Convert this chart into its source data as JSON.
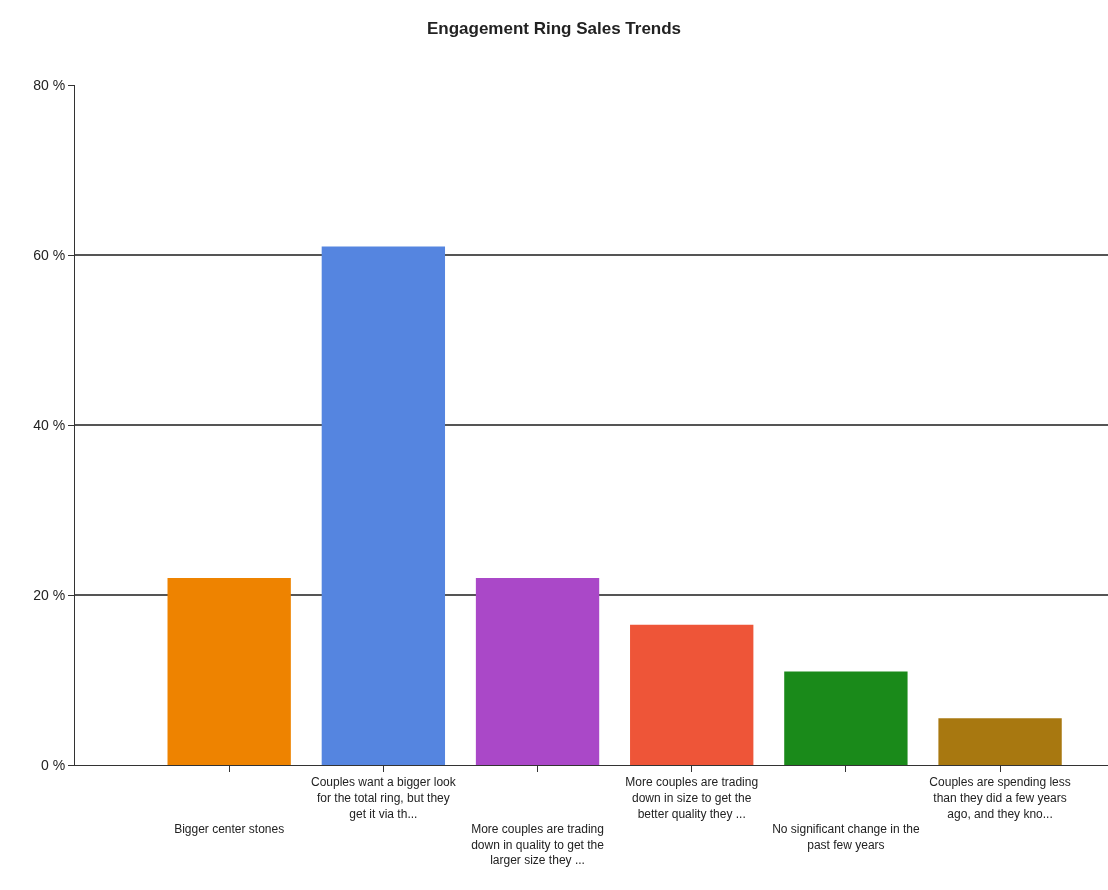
{
  "chart_data": {
    "type": "bar",
    "title": "Engagement Ring Sales Trends",
    "categories": [
      "Bigger center stones",
      "Couples want a bigger look for the total ring, but they get it via th...",
      "More couples are trading down in quality to get the larger size they ...",
      "More couples are trading down in size to get the better quality they ...",
      "No significant change in the past few years",
      "Couples are spending less than they did a few years ago, and they kno..."
    ],
    "values": [
      22,
      61,
      22,
      16.5,
      11,
      5.5
    ],
    "colors": [
      "#ee8300",
      "#5585e0",
      "#aa48c8",
      "#ee5538",
      "#1a8a1a",
      "#a87810"
    ],
    "ylim": [
      0,
      80
    ],
    "yticks": [
      {
        "value": 0,
        "label": "0 %"
      },
      {
        "value": 20,
        "label": "20 %"
      },
      {
        "value": 40,
        "label": "40 %"
      },
      {
        "value": 60,
        "label": "60 %"
      },
      {
        "value": 80,
        "label": "80 %"
      }
    ],
    "grid": "y",
    "legend": false
  }
}
